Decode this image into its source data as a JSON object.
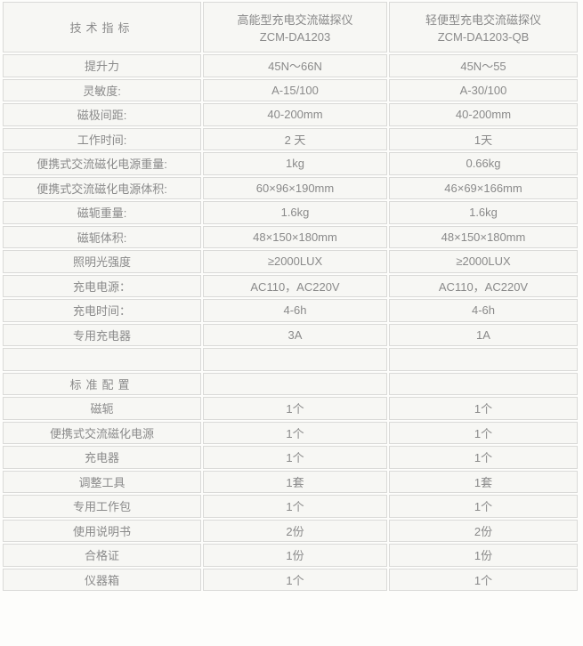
{
  "colors": {
    "page_bg": "#fdfdfb",
    "cell_bg": "#f7f7f4",
    "cell_border": "#dadad8",
    "text": "#8a8a8a"
  },
  "table": {
    "header": {
      "spec_label": "技术指标",
      "products": [
        {
          "name": "高能型充电交流磁探仪",
          "model": "ZCM-DA1203"
        },
        {
          "name": "轻便型充电交流磁探仪",
          "model": "ZCM-DA1203-QB"
        }
      ]
    },
    "rows": [
      {
        "label": "提升力",
        "values": [
          "45N～66N",
          "45N～55"
        ]
      },
      {
        "label": "灵敏度:",
        "values": [
          "A-15/100",
          "A-30/100"
        ]
      },
      {
        "label": "磁极间距:",
        "values": [
          "40-200mm",
          "40-200mm"
        ]
      },
      {
        "label": "工作时间:",
        "values": [
          "2 天",
          "1天"
        ]
      },
      {
        "label": "便携式交流磁化电源重量:",
        "values": [
          "1kg",
          "0.66kg"
        ]
      },
      {
        "label": "便携式交流磁化电源体积:",
        "values": [
          "60×96×190mm",
          "46×69×166mm"
        ]
      },
      {
        "label": "磁轭重量:",
        "values": [
          "1.6kg",
          "1.6kg"
        ]
      },
      {
        "label": "磁轭体积:",
        "values": [
          "48×150×180mm",
          "48×150×180mm"
        ]
      },
      {
        "label": "照明光强度",
        "values": [
          "≥2000LUX",
          "≥2000LUX"
        ]
      },
      {
        "label": "充电电源：",
        "values": [
          "AC110，AC220V",
          "AC110，AC220V"
        ]
      },
      {
        "label": "充电时间：",
        "values": [
          "4-6h",
          "4-6h"
        ]
      },
      {
        "label": "专用充电器",
        "values": [
          "3A",
          "1A"
        ]
      },
      {
        "label": "",
        "values": [
          "",
          ""
        ]
      },
      {
        "label": "标准配置",
        "values": [
          "",
          ""
        ],
        "spaced": true
      },
      {
        "label": "磁轭",
        "values": [
          "1个",
          "1个"
        ]
      },
      {
        "label": "便携式交流磁化电源",
        "values": [
          "1个",
          "1个"
        ]
      },
      {
        "label": "充电器",
        "values": [
          "1个",
          "1个"
        ]
      },
      {
        "label": "调整工具",
        "values": [
          "1套",
          "1套"
        ]
      },
      {
        "label": "专用工作包",
        "values": [
          "1个",
          "1个"
        ]
      },
      {
        "label": "使用说明书",
        "values": [
          "2份",
          "2份"
        ]
      },
      {
        "label": "合格证",
        "values": [
          "1份",
          "1份"
        ]
      },
      {
        "label": "仪器箱",
        "values": [
          "1个",
          "1个"
        ]
      }
    ]
  }
}
